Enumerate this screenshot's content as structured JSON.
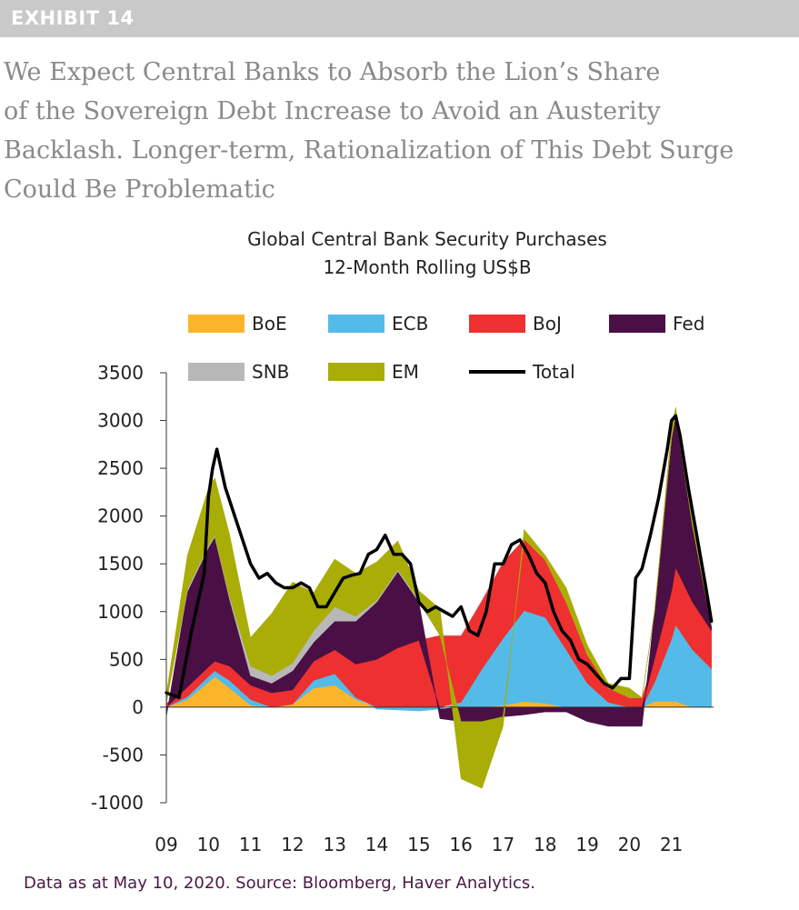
{
  "exhibit_label": "EXHIBIT 14",
  "headline": [
    "We Expect Central Banks to Absorb the Lion’s Share",
    "of the Sovereign Debt Increase to Avoid an Austerity",
    "Backlash. Longer-term, Rationalization of This Debt Surge",
    "Could Be Problematic"
  ],
  "source": "Data as at May 10, 2020. Source: Bloomberg, Haver Analytics.",
  "chart_data": {
    "type": "area",
    "stacked": true,
    "title": "Global Central Bank Security Purchases",
    "subtitle": "12-Month Rolling US$B",
    "xlabel": "",
    "ylabel": "",
    "ylim": [
      -1000,
      3500
    ],
    "yticks": [
      3500,
      3000,
      2500,
      2000,
      1500,
      1000,
      500,
      0,
      -500,
      -1000
    ],
    "xlim": [
      2009.0,
      2022.0
    ],
    "xtick_labels": [
      "09",
      "10",
      "11",
      "12",
      "13",
      "14",
      "15",
      "16",
      "17",
      "18",
      "19",
      "20",
      "21"
    ],
    "legend_position": "top",
    "grid": false,
    "colors": {
      "BoE": "#fbb52b",
      "ECB": "#54bbe8",
      "BoJ": "#ee3030",
      "Fed": "#4a0f44",
      "SNB": "#b8b8b8",
      "EM": "#a9ad05",
      "Total": "#000000"
    },
    "x": [
      2009.0,
      2009.5,
      2010.0,
      2010.15,
      2010.5,
      2011.0,
      2011.5,
      2012.0,
      2012.5,
      2013.0,
      2013.5,
      2014.0,
      2014.5,
      2015.0,
      2015.5,
      2016.0,
      2016.5,
      2017.0,
      2017.5,
      2018.0,
      2018.5,
      2019.0,
      2019.5,
      2020.0,
      2020.3,
      2020.6,
      2021.0,
      2021.1,
      2021.5,
      2021.95
    ],
    "series": [
      {
        "name": "BoE",
        "values": [
          0,
          80,
          260,
          320,
          200,
          20,
          0,
          30,
          200,
          230,
          80,
          0,
          0,
          0,
          0,
          0,
          0,
          20,
          60,
          40,
          0,
          0,
          0,
          0,
          0,
          60,
          60,
          60,
          0,
          0
        ]
      },
      {
        "name": "ECB",
        "values": [
          0,
          30,
          60,
          60,
          80,
          60,
          0,
          0,
          80,
          120,
          20,
          -20,
          -30,
          -40,
          -20,
          50,
          400,
          700,
          950,
          900,
          600,
          250,
          50,
          0,
          0,
          200,
          650,
          800,
          600,
          400
        ]
      },
      {
        "name": "BoJ",
        "values": [
          40,
          100,
          100,
          100,
          150,
          150,
          150,
          150,
          200,
          250,
          350,
          500,
          620,
          700,
          750,
          700,
          720,
          800,
          750,
          600,
          500,
          300,
          150,
          100,
          100,
          250,
          500,
          600,
          500,
          400
        ]
      },
      {
        "name": "Fed",
        "values": [
          -100,
          1000,
          1250,
          1300,
          700,
          100,
          100,
          200,
          200,
          300,
          450,
          600,
          800,
          400,
          -100,
          -150,
          -150,
          -100,
          -80,
          -50,
          -50,
          -150,
          -200,
          -200,
          -200,
          500,
          1600,
          1600,
          800,
          50
        ]
      },
      {
        "name": "SNB",
        "values": [
          0,
          30,
          20,
          20,
          30,
          100,
          80,
          80,
          120,
          150,
          50,
          20,
          20,
          20,
          0,
          0,
          0,
          0,
          0,
          0,
          0,
          0,
          0,
          0,
          0,
          0,
          0,
          0,
          0,
          0
        ]
      },
      {
        "name": "EM",
        "values": [
          100,
          350,
          600,
          600,
          650,
          300,
          650,
          850,
          400,
          500,
          450,
          400,
          300,
          100,
          280,
          -600,
          -700,
          -100,
          100,
          50,
          150,
          100,
          50,
          100,
          0,
          0,
          100,
          80,
          50,
          0
        ]
      }
    ],
    "total": {
      "name": "Total",
      "x": [
        2009.0,
        2009.3,
        2009.6,
        2009.9,
        2010.0,
        2010.1,
        2010.2,
        2010.4,
        2010.7,
        2011.0,
        2011.2,
        2011.4,
        2011.6,
        2011.8,
        2012.0,
        2012.2,
        2012.4,
        2012.6,
        2012.8,
        2013.0,
        2013.2,
        2013.4,
        2013.6,
        2013.8,
        2014.0,
        2014.2,
        2014.4,
        2014.6,
        2014.8,
        2015.0,
        2015.2,
        2015.4,
        2015.6,
        2015.8,
        2016.0,
        2016.2,
        2016.4,
        2016.6,
        2016.8,
        2017.0,
        2017.2,
        2017.4,
        2017.6,
        2017.8,
        2018.0,
        2018.2,
        2018.4,
        2018.6,
        2018.8,
        2019.0,
        2019.2,
        2019.4,
        2019.6,
        2019.8,
        2020.0,
        2020.15,
        2020.3,
        2020.5,
        2020.7,
        2020.9,
        2021.0,
        2021.1,
        2021.2,
        2021.4,
        2021.6,
        2021.8,
        2021.95
      ],
      "values": [
        150,
        100,
        800,
        1400,
        2200,
        2500,
        2700,
        2300,
        1900,
        1500,
        1350,
        1400,
        1300,
        1250,
        1250,
        1300,
        1250,
        1050,
        1050,
        1200,
        1350,
        1380,
        1400,
        1600,
        1650,
        1800,
        1600,
        1600,
        1500,
        1100,
        1000,
        1050,
        1000,
        950,
        1050,
        800,
        750,
        1000,
        1500,
        1500,
        1700,
        1750,
        1600,
        1400,
        1300,
        1000,
        800,
        700,
        500,
        450,
        350,
        250,
        200,
        300,
        300,
        1350,
        1450,
        1800,
        2200,
        2700,
        3000,
        3050,
        2850,
        2300,
        1800,
        1300,
        900
      ]
    },
    "annotations": []
  }
}
